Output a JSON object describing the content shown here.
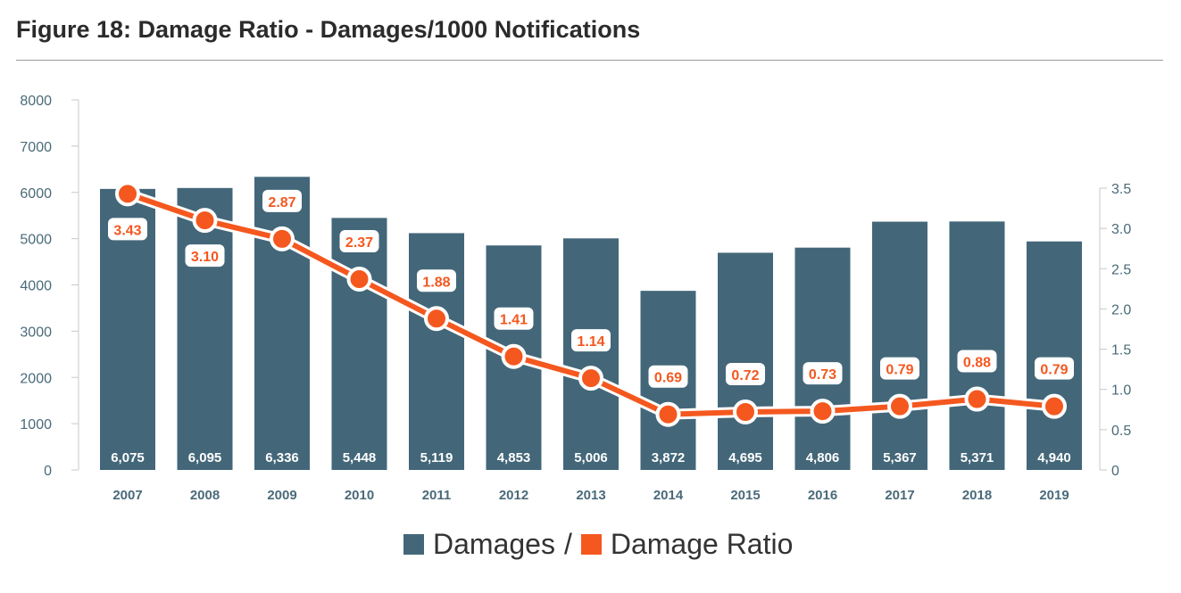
{
  "chart_data": {
    "type": "bar+line",
    "title": "Figure 18: Damage Ratio - Damages/1000 Notifications",
    "categories": [
      "2007",
      "2008",
      "2009",
      "2010",
      "2011",
      "2012",
      "2013",
      "2014",
      "2015",
      "2016",
      "2017",
      "2018",
      "2019"
    ],
    "series": [
      {
        "name": "Damages",
        "type": "bar",
        "axis": "left",
        "color": "#436779",
        "values": [
          6075,
          6095,
          6336,
          5448,
          5119,
          4853,
          5006,
          3872,
          4695,
          4806,
          5367,
          5371,
          4940
        ],
        "labels": [
          "6,075",
          "6,095",
          "6,336",
          "5,448",
          "5,119",
          "4,853",
          "5,006",
          "3,872",
          "4,695",
          "4,806",
          "5,367",
          "5,371",
          "4,940"
        ]
      },
      {
        "name": "Damage Ratio",
        "type": "line",
        "axis": "right",
        "color": "#f4581f",
        "values": [
          3.43,
          3.1,
          2.87,
          2.37,
          1.88,
          1.41,
          1.14,
          0.69,
          0.72,
          0.73,
          0.79,
          0.88,
          0.79
        ],
        "labels": [
          "3.43",
          "3.10",
          "2.87",
          "2.37",
          "1.88",
          "1.41",
          "1.14",
          "0.69",
          "0.72",
          "0.73",
          "0.79",
          "0.88",
          "0.79"
        ]
      }
    ],
    "y_left": {
      "range": [
        0,
        8000
      ],
      "ticks": [
        "0",
        "1000",
        "2000",
        "3000",
        "4000",
        "5000",
        "6000",
        "7000",
        "8000"
      ]
    },
    "y_right": {
      "range": [
        0,
        3.5
      ],
      "ticks": [
        "0",
        "0.5",
        "1.0",
        "1.5",
        "2.0",
        "2.5",
        "3.0",
        "3.5"
      ]
    },
    "legend": {
      "position": "bottom",
      "items": [
        "Damages",
        "Damage Ratio"
      ],
      "separator": "/"
    },
    "grid": false
  }
}
